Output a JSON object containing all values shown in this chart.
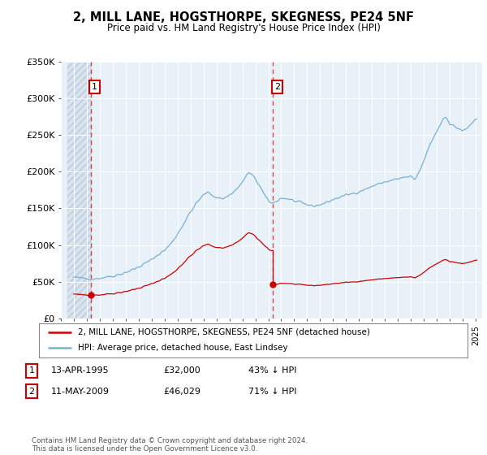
{
  "title": "2, MILL LANE, HOGSTHORPE, SKEGNESS, PE24 5NF",
  "subtitle": "Price paid vs. HM Land Registry's House Price Index (HPI)",
  "legend_property": "2, MILL LANE, HOGSTHORPE, SKEGNESS, PE24 5NF (detached house)",
  "legend_hpi": "HPI: Average price, detached house, East Lindsey",
  "table_row1": [
    "1",
    "13-APR-1995",
    "£32,000",
    "43% ↓ HPI"
  ],
  "table_row2": [
    "2",
    "11-MAY-2009",
    "£46,029",
    "71% ↓ HPI"
  ],
  "footer": "Contains HM Land Registry data © Crown copyright and database right 2024.\nThis data is licensed under the Open Government Licence v3.0.",
  "sale1_year": 1995.29,
  "sale1_price": 32000,
  "sale2_year": 2009.37,
  "sale2_price": 46029,
  "property_color": "#cc0000",
  "hpi_color": "#7aafd4",
  "ylim": [
    0,
    350000
  ],
  "yticks": [
    0,
    50000,
    100000,
    150000,
    200000,
    250000,
    300000,
    350000
  ],
  "ytick_labels": [
    "£0",
    "£50K",
    "£100K",
    "£150K",
    "£200K",
    "£250K",
    "£300K",
    "£350K"
  ],
  "xmin": 1993.5,
  "xmax": 2025.5,
  "bg_color": "#ffffff",
  "plot_bg": "#e8f0f8"
}
